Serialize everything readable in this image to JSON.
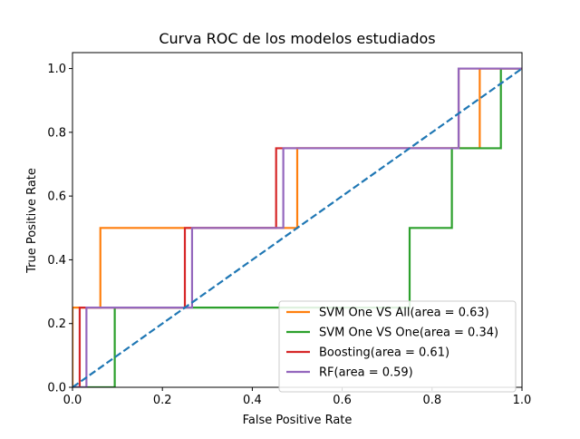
{
  "chart_data": {
    "type": "line",
    "title": "Curva ROC de los modelos estudiados",
    "xlabel": "False Positive Rate",
    "ylabel": "True Positive Rate",
    "xlim": [
      0,
      1
    ],
    "ylim": [
      0,
      1.05
    ],
    "xticks": [
      0.0,
      0.2,
      0.4,
      0.6,
      0.8,
      1.0
    ],
    "xtick_labels": [
      "0.0",
      "0.2",
      "0.4",
      "0.6",
      "0.8",
      "1.0"
    ],
    "yticks": [
      0.0,
      0.2,
      0.4,
      0.6,
      0.8,
      1.0
    ],
    "ytick_labels": [
      "0.0",
      "0.2",
      "0.4",
      "0.6",
      "0.8",
      "1.0"
    ],
    "grid": false,
    "legend_position": "bottom-right",
    "series": [
      {
        "name": "SVM One VS All(area = 0.63)",
        "color": "#ff7f0e",
        "x": [
          0,
          0,
          0.062,
          0.062,
          0.5,
          0.5,
          0.906,
          0.906,
          1.0
        ],
        "y": [
          0,
          0.25,
          0.25,
          0.5,
          0.5,
          0.75,
          0.75,
          1.0,
          1.0
        ]
      },
      {
        "name": "SVM One VS One(area = 0.34)",
        "color": "#2ca02c",
        "x": [
          0,
          0.094,
          0.094,
          0.75,
          0.75,
          0.844,
          0.844,
          0.953,
          0.953,
          1.0
        ],
        "y": [
          0,
          0,
          0.25,
          0.25,
          0.5,
          0.5,
          0.75,
          0.75,
          1.0,
          1.0
        ]
      },
      {
        "name": "Boosting(area = 0.61)",
        "color": "#d62728",
        "x": [
          0,
          0.016,
          0.016,
          0.25,
          0.25,
          0.453,
          0.453,
          0.859,
          0.859,
          1.0
        ],
        "y": [
          0,
          0,
          0.25,
          0.25,
          0.5,
          0.5,
          0.75,
          0.75,
          1.0,
          1.0
        ]
      },
      {
        "name": "RF(area = 0.59)",
        "color": "#9467bd",
        "x": [
          0,
          0.031,
          0.031,
          0.266,
          0.266,
          0.469,
          0.469,
          0.859,
          0.859,
          1.0
        ],
        "y": [
          0,
          0,
          0.25,
          0.25,
          0.5,
          0.5,
          0.75,
          0.75,
          1.0,
          1.0
        ]
      }
    ],
    "reference_line": {
      "color": "#1f77b4",
      "style": "dashed",
      "x": [
        0,
        1
      ],
      "y": [
        0,
        1
      ]
    }
  }
}
